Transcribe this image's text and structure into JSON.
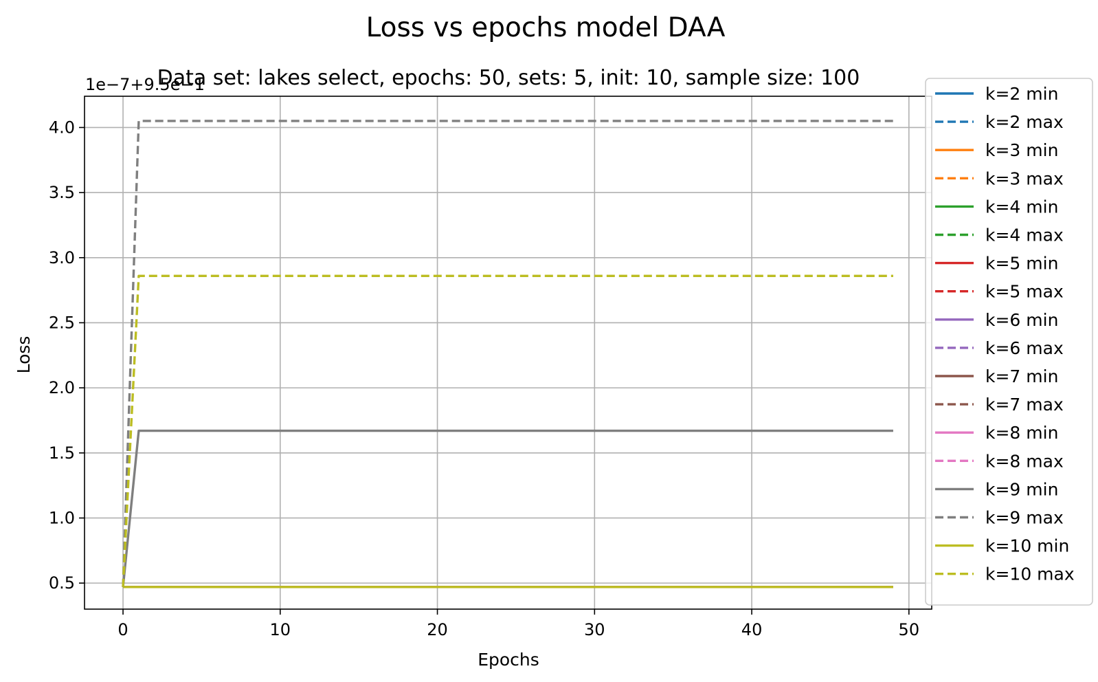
{
  "chart_data": {
    "type": "line",
    "suptitle": "Loss vs epochs model DAA",
    "title": "Data set:  lakes select, epochs: 50, sets: 5, init: 10, sample size: 100",
    "xlabel": "Epochs",
    "ylabel": "Loss",
    "offset_text": "1e−7+9.5e−1",
    "xlim": [
      -2.45,
      51.45
    ],
    "ylim": [
      0.3,
      4.24
    ],
    "xticks": [
      0,
      10,
      20,
      30,
      40,
      50
    ],
    "xtick_labels": [
      "0",
      "10",
      "20",
      "30",
      "40",
      "50"
    ],
    "yticks": [
      0.5,
      1.0,
      1.5,
      2.0,
      2.5,
      3.0,
      3.5,
      4.0
    ],
    "ytick_labels": [
      "0.5",
      "1.0",
      "1.5",
      "2.0",
      "2.5",
      "3.0",
      "3.5",
      "4.0"
    ],
    "grid": true,
    "legend_position": "right",
    "series": [
      {
        "name": "k=2 min",
        "color": "#1f77b4",
        "style": "solid",
        "start": 0.47,
        "end": 0.47
      },
      {
        "name": "k=2 max",
        "color": "#1f77b4",
        "style": "dashed",
        "start": 0.47,
        "end": 0.47
      },
      {
        "name": "k=3 min",
        "color": "#ff7f0e",
        "style": "solid",
        "start": 0.47,
        "end": 0.47
      },
      {
        "name": "k=3 max",
        "color": "#ff7f0e",
        "style": "dashed",
        "start": 0.47,
        "end": 0.47
      },
      {
        "name": "k=4 min",
        "color": "#2ca02c",
        "style": "solid",
        "start": 0.47,
        "end": 0.47
      },
      {
        "name": "k=4 max",
        "color": "#2ca02c",
        "style": "dashed",
        "start": 0.47,
        "end": 0.47
      },
      {
        "name": "k=5 min",
        "color": "#d62728",
        "style": "solid",
        "start": 0.47,
        "end": 0.47
      },
      {
        "name": "k=5 max",
        "color": "#d62728",
        "style": "dashed",
        "start": 0.47,
        "end": 0.47
      },
      {
        "name": "k=6 min",
        "color": "#9467bd",
        "style": "solid",
        "start": 0.47,
        "end": 0.47
      },
      {
        "name": "k=6 max",
        "color": "#9467bd",
        "style": "dashed",
        "start": 0.47,
        "end": 0.47
      },
      {
        "name": "k=7 min",
        "color": "#8c564b",
        "style": "solid",
        "start": 0.47,
        "end": 0.47
      },
      {
        "name": "k=7 max",
        "color": "#8c564b",
        "style": "dashed",
        "start": 0.47,
        "end": 0.47
      },
      {
        "name": "k=8 min",
        "color": "#e377c2",
        "style": "solid",
        "start": 0.47,
        "end": 0.47
      },
      {
        "name": "k=8 max",
        "color": "#e377c2",
        "style": "dashed",
        "start": 0.47,
        "end": 0.47
      },
      {
        "name": "k=9 min",
        "color": "#7f7f7f",
        "style": "solid",
        "start": 0.47,
        "end": 1.67
      },
      {
        "name": "k=9 max",
        "color": "#7f7f7f",
        "style": "dashed",
        "start": 0.47,
        "end": 4.05
      },
      {
        "name": "k=10 min",
        "color": "#bcbd22",
        "style": "solid",
        "start": 0.47,
        "end": 0.47
      },
      {
        "name": "k=10 max",
        "color": "#bcbd22",
        "style": "dashed",
        "start": 0.47,
        "end": 2.86
      }
    ]
  }
}
